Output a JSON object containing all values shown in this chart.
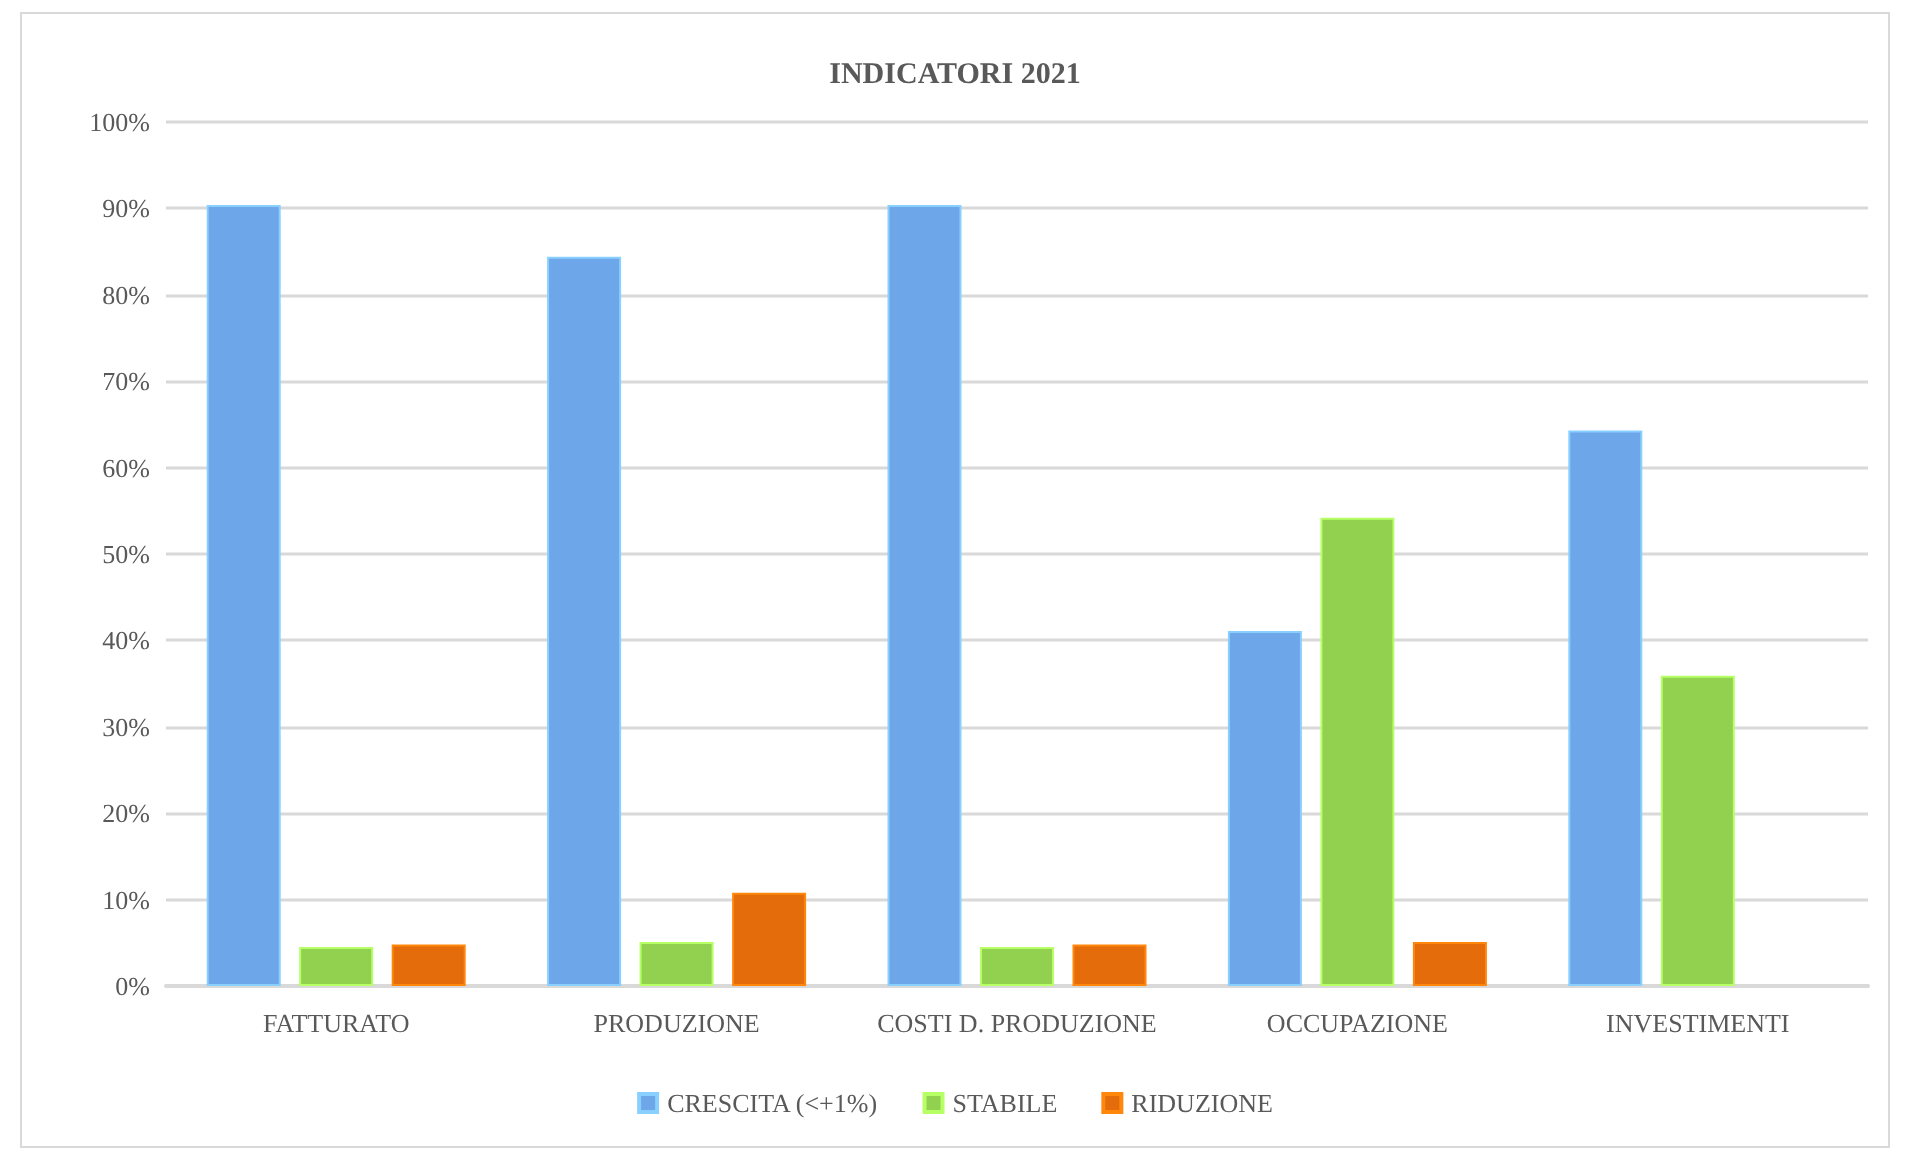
{
  "chart_data": {
    "type": "bar",
    "title": "INDICATORI 2021",
    "categories": [
      "FATTURATO",
      "PRODUZIONE",
      "COSTI D. PRODUZIONE",
      "OCCUPAZIONE",
      "INVESTIMENTI"
    ],
    "series": [
      {
        "name": "CRESCITA (<+1%)",
        "color": "#6ea6ea",
        "values": [
          90.4,
          84.4,
          90.4,
          41.1,
          64.3
        ]
      },
      {
        "name": "STABILE",
        "color": "#92d050",
        "values": [
          4.5,
          5.1,
          4.5,
          54.2,
          35.9
        ]
      },
      {
        "name": "RIDUZIONE",
        "color": "#e46c0a",
        "values": [
          4.8,
          10.8,
          4.8,
          5.1,
          null
        ]
      }
    ],
    "ylim": [
      0,
      100
    ],
    "yticks": [
      {
        "value": 0,
        "label": "0%"
      },
      {
        "value": 10,
        "label": "10%"
      },
      {
        "value": 20,
        "label": "20%"
      },
      {
        "value": 30,
        "label": "30%"
      },
      {
        "value": 40,
        "label": "40%"
      },
      {
        "value": 50,
        "label": "50%"
      },
      {
        "value": 60,
        "label": "60%"
      },
      {
        "value": 70,
        "label": "70%"
      },
      {
        "value": 80,
        "label": "80%"
      },
      {
        "value": 90,
        "label": "90%"
      },
      {
        "value": 100,
        "label": "100%"
      }
    ],
    "grid": "y",
    "legend": "bottom"
  }
}
